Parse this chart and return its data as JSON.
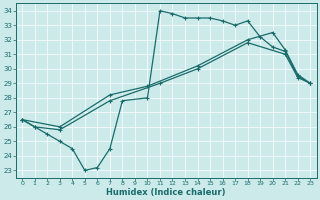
{
  "xlabel": "Humidex (Indice chaleur)",
  "xlim": [
    -0.5,
    23.5
  ],
  "ylim": [
    22.5,
    34.5
  ],
  "xticks": [
    0,
    1,
    2,
    3,
    4,
    5,
    6,
    7,
    8,
    9,
    10,
    11,
    12,
    13,
    14,
    15,
    16,
    17,
    18,
    19,
    20,
    21,
    22,
    23
  ],
  "yticks": [
    23,
    24,
    25,
    26,
    27,
    28,
    29,
    30,
    31,
    32,
    33,
    34
  ],
  "bg_color": "#cceaea",
  "line_color": "#1a6b6b",
  "line1_x": [
    0,
    1,
    2,
    3,
    4,
    5,
    6,
    7,
    8,
    10,
    11,
    12,
    13,
    14,
    15,
    16,
    17,
    18,
    19,
    20,
    21,
    22,
    23
  ],
  "line1_y": [
    26.5,
    26.0,
    25.5,
    25.0,
    24.5,
    23.0,
    23.2,
    24.5,
    27.8,
    28.0,
    34.0,
    33.8,
    33.5,
    33.5,
    33.5,
    33.3,
    33.0,
    33.3,
    32.2,
    31.5,
    31.2,
    29.5,
    29.0
  ],
  "line2_x": [
    0,
    3,
    7,
    10,
    14,
    18,
    20,
    21,
    22,
    23
  ],
  "line2_y": [
    26.5,
    26.0,
    28.2,
    28.8,
    30.2,
    32.0,
    32.5,
    31.3,
    29.6,
    29.0
  ],
  "line3_x": [
    0,
    1,
    3,
    7,
    11,
    14,
    18,
    21,
    22,
    23
  ],
  "line3_y": [
    26.5,
    26.0,
    25.8,
    27.8,
    29.0,
    30.0,
    31.8,
    31.0,
    29.4,
    29.0
  ]
}
